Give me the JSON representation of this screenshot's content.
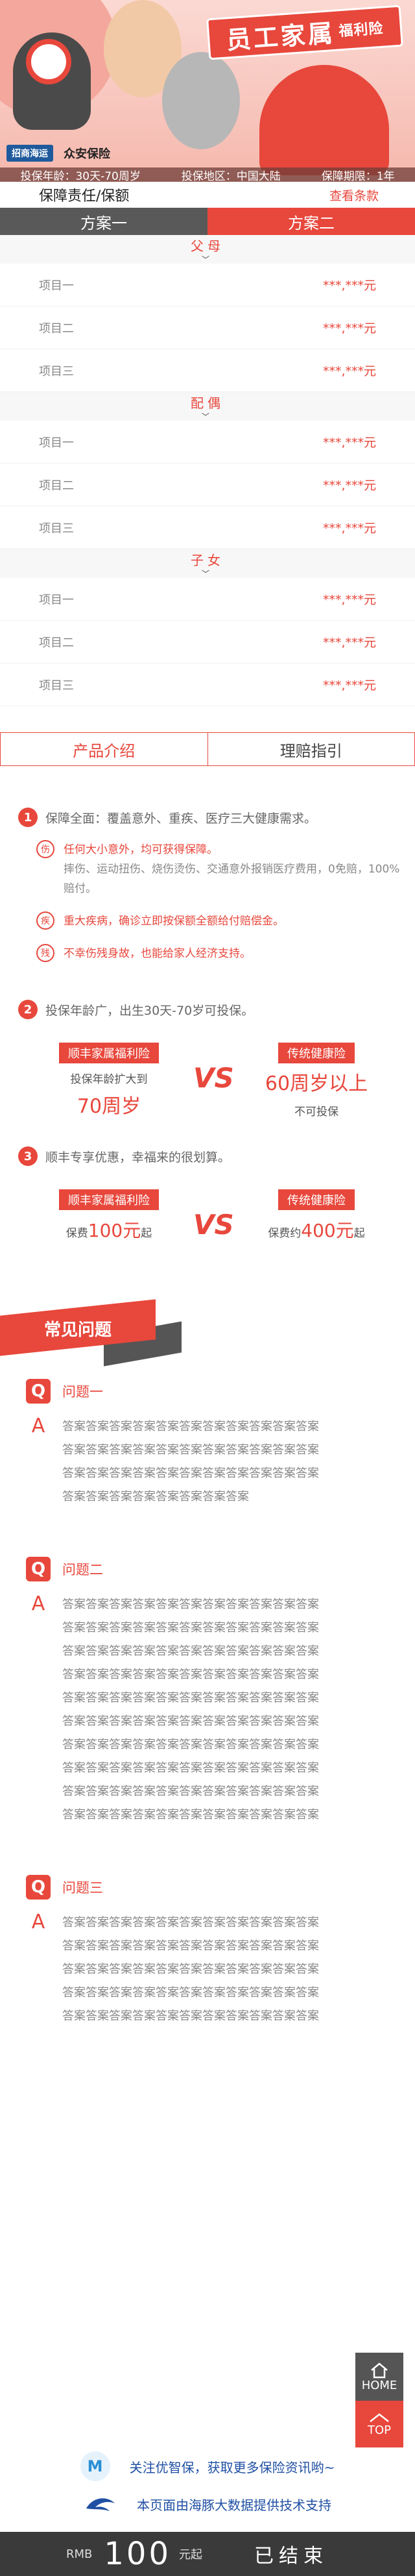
{
  "hero": {
    "title": "员工家属",
    "title_sub": "福利险",
    "logo_a": "招商海运",
    "logo_b": "众安保险",
    "info": [
      "投保年龄：30天-70周岁",
      "投保地区：中国大陆",
      "保障期限：1年"
    ]
  },
  "terms": {
    "label": "保障责任/保额",
    "link": "查看条款"
  },
  "plans": [
    "方案一",
    "方案二"
  ],
  "groups": [
    {
      "name": "父母",
      "items": [
        {
          "k": "项目一",
          "v": "***,***元"
        },
        {
          "k": "项目二",
          "v": "***,***元"
        },
        {
          "k": "项目三",
          "v": "***,***元"
        }
      ]
    },
    {
      "name": "配偶",
      "items": [
        {
          "k": "项目一",
          "v": "***,***元"
        },
        {
          "k": "项目二",
          "v": "***,***元"
        },
        {
          "k": "项目三",
          "v": "***,***元"
        }
      ]
    },
    {
      "name": "子女",
      "items": [
        {
          "k": "项目一",
          "v": "***,***元"
        },
        {
          "k": "项目二",
          "v": "***,***元"
        },
        {
          "k": "项目三",
          "v": "***,***元"
        }
      ]
    }
  ],
  "prod_tabs": [
    "产品介绍",
    "理赔指引"
  ],
  "features": {
    "f1": {
      "num": "1",
      "title": "保障全面：覆盖意外、重疾、医疗三大健康需求。",
      "subs": [
        {
          "icon": "伤",
          "text": "任何大小意外，均可获得保障。",
          "gray": "摔伤、运动扭伤、烧伤烫伤、交通意外报销医疗费用，0免赔，100%赔付。"
        },
        {
          "icon": "疾",
          "text": "重大疾病，确诊立即按保额全额给付赔偿金。",
          "gray": ""
        },
        {
          "icon": "残",
          "text": "不幸伤残身故，也能给家人经济支持。",
          "gray": ""
        }
      ]
    },
    "f2": {
      "num": "2",
      "title": "投保年龄广，出生30天-70岁可投保。",
      "left_label": "顺丰家属福利险",
      "left_line": "投保年龄扩大到",
      "left_big": "70周岁",
      "vs": "VS",
      "right_label": "传统健康险",
      "right_big": "60周岁以上",
      "right_line": "不可投保"
    },
    "f3": {
      "num": "3",
      "title": "顺丰专享优惠，幸福来的很划算。",
      "left_label": "顺丰家属福利险",
      "left_pre": "保费",
      "left_big": "100元",
      "left_post": "起",
      "vs": "VS",
      "right_label": "传统健康险",
      "right_pre": "保费约",
      "right_big": "400元",
      "right_post": "起"
    }
  },
  "faq": {
    "banner": "常见问题",
    "q_letter": "Q",
    "a_letter": "A",
    "items": [
      {
        "q": "问题一",
        "lines": [
          "答案答案答案答案答案答案答案答案答案答案答案",
          "答案答案答案答案答案答案答案答案答案答案答案",
          "答案答案答案答案答案答案答案答案答案答案答案",
          "答案答案答案答案答案答案答案答案"
        ]
      },
      {
        "q": "问题二",
        "lines": [
          "答案答案答案答案答案答案答案答案答案答案答案",
          "答案答案答案答案答案答案答案答案答案答案答案",
          "答案答案答案答案答案答案答案答案答案答案答案",
          "答案答案答案答案答案答案答案答案答案答案答案",
          "答案答案答案答案答案答案答案答案答案答案答案",
          "答案答案答案答案答案答案答案答案答案答案答案",
          "答案答案答案答案答案答案答案答案答案答案答案",
          "答案答案答案答案答案答案答案答案答案答案答案",
          "答案答案答案答案答案答案答案答案答案答案答案",
          "答案答案答案答案答案答案答案答案答案答案答案"
        ]
      },
      {
        "q": "问题三",
        "lines": [
          "答案答案答案答案答案答案答案答案答案答案答案",
          "答案答案答案答案答案答案答案答案答案答案答案",
          "答案答案答案答案答案答案答案答案答案答案答案",
          "答案答案答案答案答案答案答案答案答案答案答案",
          "答案答案答案答案答案答案答案答案答案答案答案"
        ]
      }
    ]
  },
  "float": {
    "home": "HOME",
    "top": "TOP"
  },
  "footer": {
    "follow": "关注优智保，获取更多保险资讯哟~",
    "powered": "本页面由海豚大数据提供技术支持"
  },
  "price": {
    "rmb": "RMB",
    "amount": "100",
    "unit": "元起",
    "status": "已结束"
  }
}
